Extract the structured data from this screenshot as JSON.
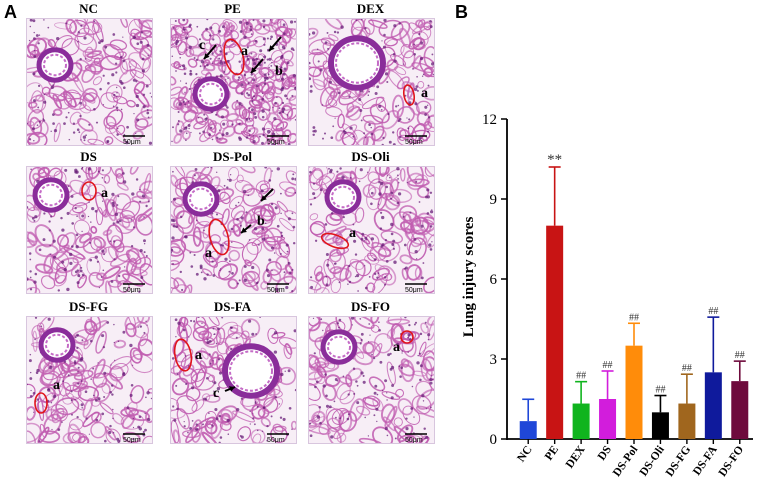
{
  "panel_a": {
    "letter": "A",
    "tiles": [
      {
        "name": "NC",
        "labels": [],
        "scale": "50μm"
      },
      {
        "name": "PE",
        "labels": [
          "a",
          "b",
          "c"
        ],
        "scale": "50μm"
      },
      {
        "name": "DEX",
        "labels": [
          "a"
        ],
        "scale": "50μm"
      },
      {
        "name": "DS",
        "labels": [
          "a"
        ],
        "scale": "50μm"
      },
      {
        "name": "DS-Pol",
        "labels": [
          "a",
          "b"
        ],
        "scale": "50μm"
      },
      {
        "name": "DS-Oli",
        "labels": [
          "a"
        ],
        "scale": "50μm"
      },
      {
        "name": "DS-FG",
        "labels": [
          "a"
        ],
        "scale": "50μm"
      },
      {
        "name": "DS-FA",
        "labels": [
          "a",
          "c"
        ],
        "scale": "50μm"
      },
      {
        "name": "DS-FO",
        "labels": [
          "a"
        ],
        "scale": "50μm"
      }
    ]
  },
  "panel_b": {
    "letter": "B"
  },
  "colors": {
    "tissue": "#c05cb0",
    "tissue_bg": "#f7eef6",
    "annotation_ring": "#e0141b"
  },
  "chart_data": {
    "type": "bar",
    "title": "",
    "xlabel": "",
    "ylabel": "Lung injury scores",
    "ylim": [
      0,
      12
    ],
    "yticks": [
      0,
      3,
      6,
      9,
      12
    ],
    "categories": [
      "NC",
      "PE",
      "DEX",
      "DS",
      "DS-Pol",
      "DS-Oli",
      "DS-FG",
      "DS-FA",
      "DS-FO"
    ],
    "values": [
      0.67,
      8.0,
      1.33,
      1.5,
      3.5,
      1.0,
      1.33,
      2.5,
      2.17
    ],
    "errors": [
      0.82,
      2.2,
      0.82,
      1.05,
      0.84,
      0.63,
      1.1,
      2.07,
      0.75
    ],
    "colors": [
      "#1f47d8",
      "#c81414",
      "#10b41e",
      "#d21ddc",
      "#ff8c0a",
      "#000000",
      "#a0661e",
      "#0f1a9c",
      "#6e0a3c"
    ],
    "annotations": [
      "",
      "**",
      "##",
      "##",
      "##",
      "##",
      "##",
      "##",
      "##"
    ]
  }
}
